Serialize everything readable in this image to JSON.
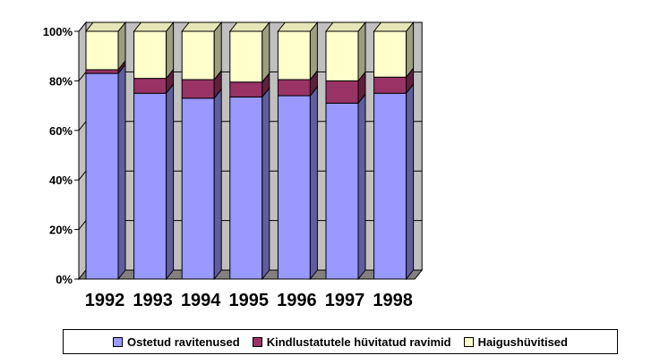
{
  "chart_data": {
    "type": "bar",
    "stacked": "percent",
    "style": "3d",
    "categories": [
      "1992",
      "1993",
      "1994",
      "1995",
      "1996",
      "1997",
      "1998"
    ],
    "series": [
      {
        "name": "Ostetud ravitenused",
        "color": "#9999ff",
        "values": [
          83,
          75,
          73,
          73.5,
          74,
          71,
          75
        ]
      },
      {
        "name": "Kindlustatutele hüvitatud ravimid",
        "color": "#993366",
        "values": [
          1.5,
          6,
          7.5,
          6,
          6.5,
          9,
          6.5
        ]
      },
      {
        "name": "Haigushüvitised",
        "color": "#ffffcc",
        "values": [
          15.5,
          19,
          19.5,
          20.5,
          19.5,
          20,
          18.5
        ]
      }
    ],
    "yticks": [
      "0%",
      "20%",
      "40%",
      "60%",
      "80%",
      "100%"
    ],
    "ylim": [
      0,
      100
    ],
    "grid": true,
    "legend_position": "bottom",
    "wall_color": "#c0c0c0",
    "floor_color": "#808080"
  }
}
